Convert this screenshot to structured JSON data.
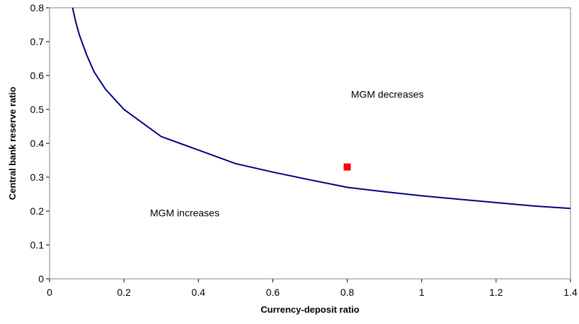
{
  "chart_data": {
    "type": "scatter",
    "xlabel": "Currency-deposit ratio",
    "ylabel": "Central bank reserve ratio",
    "xlim": [
      0,
      1.4
    ],
    "ylim": [
      0,
      0.8
    ],
    "x_ticks": [
      "0",
      "0.2",
      "0.4",
      "0.6",
      "0.8",
      "1",
      "1.2",
      "1.4"
    ],
    "y_ticks": [
      "0",
      "0.1",
      "0.2",
      "0.3",
      "0.4",
      "0.5",
      "0.6",
      "0.7",
      "0.8"
    ],
    "grid": false,
    "legend": "none",
    "series": [
      {
        "kind": "line",
        "color": "#000080",
        "points": [
          [
            0.06,
            0.81
          ],
          [
            0.07,
            0.76
          ],
          [
            0.08,
            0.72
          ],
          [
            0.1,
            0.66
          ],
          [
            0.12,
            0.61
          ],
          [
            0.15,
            0.56
          ],
          [
            0.2,
            0.5
          ],
          [
            0.25,
            0.46
          ],
          [
            0.3,
            0.42
          ],
          [
            0.35,
            0.4
          ],
          [
            0.4,
            0.38
          ],
          [
            0.5,
            0.34
          ],
          [
            0.6,
            0.315
          ],
          [
            0.7,
            0.292
          ],
          [
            0.8,
            0.27
          ],
          [
            0.9,
            0.257
          ],
          [
            1.0,
            0.245
          ],
          [
            1.1,
            0.235
          ],
          [
            1.2,
            0.225
          ],
          [
            1.3,
            0.215
          ],
          [
            1.4,
            0.208
          ]
        ]
      },
      {
        "kind": "marker",
        "color": "#ff0000",
        "points": [
          [
            0.8,
            0.33
          ]
        ]
      }
    ],
    "annotations": [
      {
        "text": "MGM decreases",
        "x": 0.81,
        "y": 0.545
      },
      {
        "text": "MGM increases",
        "x": 0.27,
        "y": 0.195
      }
    ]
  }
}
